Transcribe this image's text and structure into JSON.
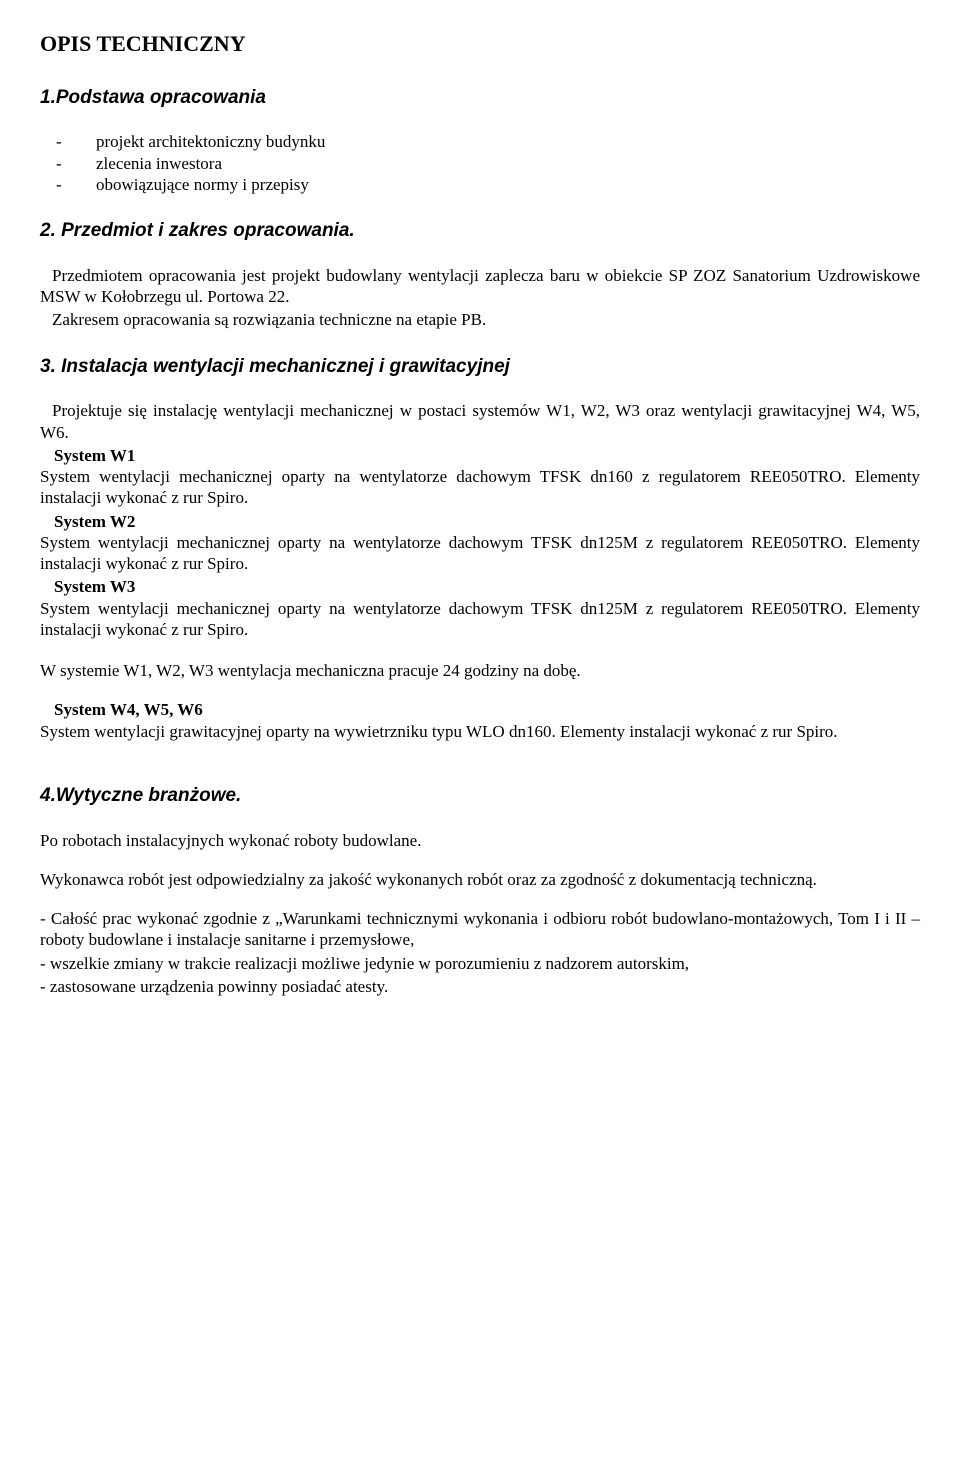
{
  "title": "OPIS TECHNICZNY",
  "s1": {
    "heading": "1.Podstawa opracowania",
    "items": [
      "projekt architektoniczny budynku",
      "zlecenia inwestora",
      "obowiązujące normy i przepisy"
    ]
  },
  "s2": {
    "heading": "2. Przedmiot i zakres opracowania.",
    "p1": "Przedmiotem opracowania jest projekt budowlany wentylacji zaplecza baru w obiekcie SP ZOZ Sanatorium Uzdrowiskowe MSW w Kołobrzegu ul. Portowa 22.",
    "p2": "Zakresem opracowania są rozwiązania techniczne na etapie PB."
  },
  "s3": {
    "heading": "3. Instalacja wentylacji mechanicznej i grawitacyjnej",
    "intro": "Projektuje się instalację wentylacji mechanicznej w postaci systemów W1, W2, W3 oraz wentylacji grawitacyjnej W4, W5, W6.",
    "w1": {
      "label": "System W1",
      "text": "System wentylacji mechanicznej oparty na wentylatorze dachowym TFSK dn160 z regulatorem REE050TRO. Elementy instalacji wykonać z rur Spiro."
    },
    "w2": {
      "label": "System W2",
      "text": "System wentylacji mechanicznej oparty na wentylatorze dachowym TFSK dn125M z regulatorem REE050TRO. Elementy instalacji wykonać z rur Spiro."
    },
    "w3": {
      "label": "System W3",
      "text": "System wentylacji mechanicznej oparty na wentylatorze dachowym TFSK dn125M z regulatorem REE050TRO. Elementy instalacji wykonać z rur Spiro."
    },
    "note": "W systemie W1, W2, W3 wentylacja mechaniczna pracuje 24 godziny na dobę.",
    "w456": {
      "label": "System W4, W5, W6",
      "text": "System wentylacji grawitacyjnej oparty na wywietrzniku typu WLO dn160. Elementy instalacji wykonać z rur Spiro."
    }
  },
  "s4": {
    "heading": "4.Wytyczne branżowe.",
    "p1": "Po robotach instalacyjnych wykonać roboty budowlane.",
    "p2": "Wykonawca robót jest odpowiedzialny za jakość wykonanych robót oraz za zgodność z dokumentacją techniczną.",
    "b1": "- Całość prac wykonać zgodnie z „Warunkami technicznymi wykonania i odbioru robót budowlano-montażowych, Tom I i II – roboty budowlane i instalacje sanitarne i przemysłowe,",
    "b2": "- wszelkie zmiany w trakcie realizacji możliwe jedynie w porozumieniu z nadzorem autorskim,",
    "b3": "- zastosowane urządzenia powinny posiadać atesty."
  }
}
